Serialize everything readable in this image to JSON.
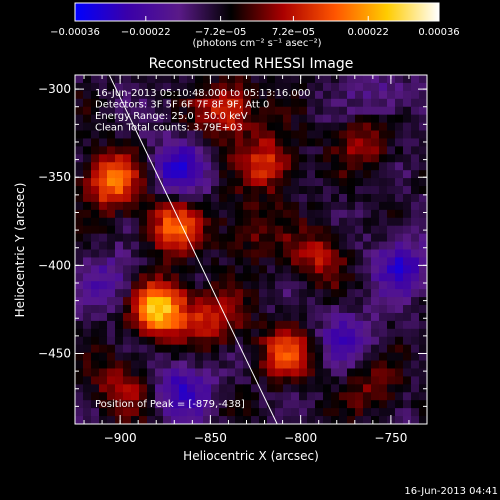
{
  "chart_data": {
    "type": "heatmap",
    "title": "Reconstructed RHESSI Image",
    "xlabel": "Heliocentric X (arcsec)",
    "ylabel": "Heliocentric Y (arcsec)",
    "xlim": [
      -925,
      -730
    ],
    "ylim": [
      -490,
      -292
    ],
    "x_ticks": [
      {
        "v": -900,
        "label": "−900"
      },
      {
        "v": -850,
        "label": "−850"
      },
      {
        "v": -800,
        "label": "−800"
      },
      {
        "v": -750,
        "label": "−750"
      }
    ],
    "y_ticks": [
      {
        "v": -300,
        "label": "−300"
      },
      {
        "v": -350,
        "label": "−350"
      },
      {
        "v": -400,
        "label": "−400"
      },
      {
        "v": -450,
        "label": "−450"
      }
    ],
    "colorbar": {
      "min": -0.00036,
      "max": 0.00036,
      "tick_values": [
        -0.00036,
        -0.00022,
        -7.2e-05,
        7.2e-05,
        0.00022,
        0.00036
      ],
      "tick_labels": [
        "−0.00036",
        "−0.00022",
        "−7.2e−05",
        "7.2e−05",
        "0.00022",
        "0.00036"
      ],
      "units_label": "(photons cm⁻² s⁻¹ asec⁻²)",
      "colors": [
        "#0000ff",
        "#3a00aa",
        "#5a1a88",
        "#000000",
        "#aa0000",
        "#ff5500",
        "#ffcc00",
        "#ffffff"
      ]
    },
    "annotations": [
      "16-Jun-2013 05:10:48.000 to 05:13:16.000",
      "Detectors: 3F 5F 6F 7F 8F 9F, Att 0",
      "Energy Range: 25.0 - 50.0 keV",
      "Clean     Total counts: 3.79E+03"
    ],
    "peak_label": "Position of Peak = [-879,-438]",
    "peak": {
      "x": -879,
      "y": -438
    },
    "limb_line": [
      [
        -906,
        -292
      ],
      [
        -813,
        -490
      ]
    ],
    "hot_spots": [
      {
        "x": -878,
        "y": -425,
        "value": 0.00036
      },
      {
        "x": -905,
        "y": -352,
        "value": 0.00028
      },
      {
        "x": -870,
        "y": -378,
        "value": 0.00024
      },
      {
        "x": -840,
        "y": -312,
        "value": 0.00022
      },
      {
        "x": -818,
        "y": -342,
        "value": 0.0002
      },
      {
        "x": -808,
        "y": -450,
        "value": 0.0002
      },
      {
        "x": -790,
        "y": -395,
        "value": 0.00016
      },
      {
        "x": -848,
        "y": -430,
        "value": 0.00018
      },
      {
        "x": -765,
        "y": -330,
        "value": 0.00014
      },
      {
        "x": -900,
        "y": -470,
        "value": 0.00014
      },
      {
        "x": -828,
        "y": -380,
        "value": 0.00012
      },
      {
        "x": -760,
        "y": -470,
        "value": 0.0001
      }
    ],
    "cold_spots": [
      {
        "x": -868,
        "y": -345,
        "value": -0.0002
      },
      {
        "x": -865,
        "y": -470,
        "value": -0.00018
      },
      {
        "x": -745,
        "y": -400,
        "value": -0.00018
      },
      {
        "x": -905,
        "y": -410,
        "value": -0.00012
      },
      {
        "x": -775,
        "y": -440,
        "value": -0.00014
      },
      {
        "x": -755,
        "y": -305,
        "value": -0.0001
      }
    ]
  },
  "footer": {
    "timestamp": "16-Jun-2013 04:41"
  }
}
